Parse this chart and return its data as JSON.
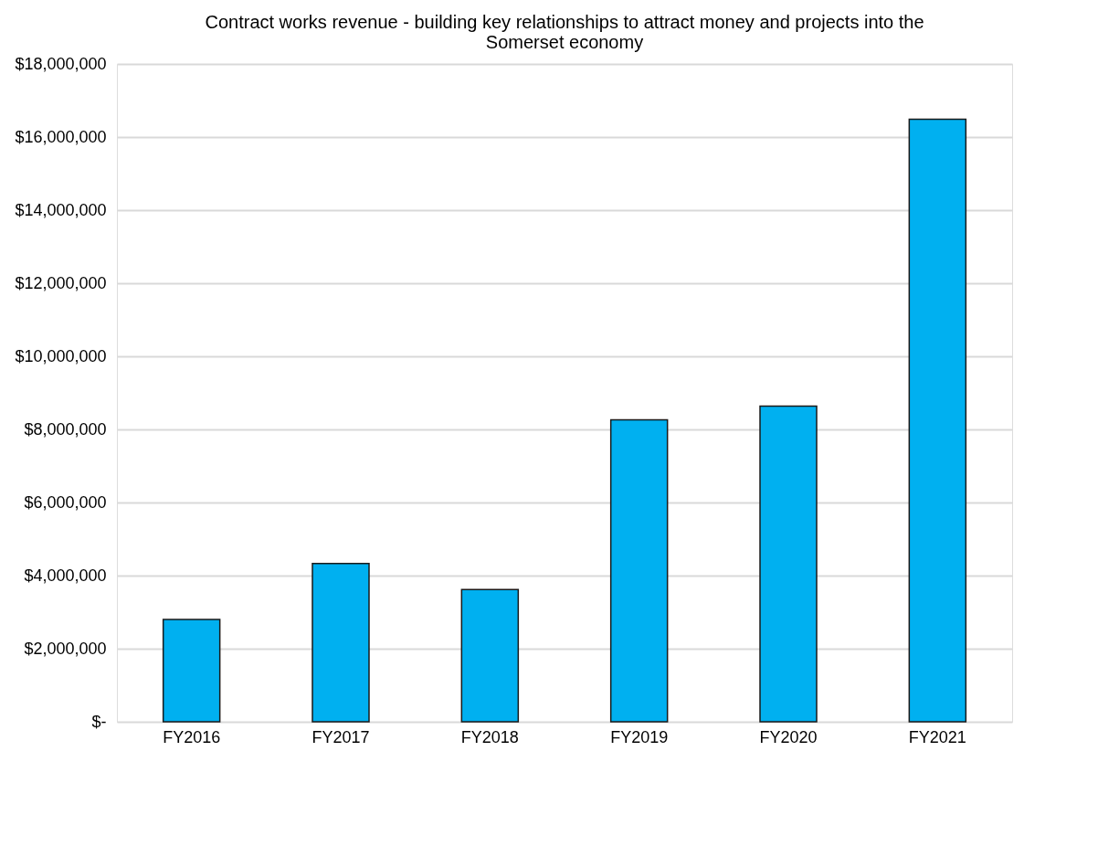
{
  "chart_data": {
    "type": "bar",
    "title": "Contract works revenue - building key relationships to attract money and projects into the Somerset economy",
    "categories": [
      "FY2016",
      "FY2017",
      "FY2018",
      "FY2019",
      "FY2020",
      "FY2021"
    ],
    "values": [
      2800000,
      4330000,
      3620000,
      8260000,
      8640000,
      16490000
    ],
    "color": "#00b0f0",
    "ylim": [
      0,
      18000000
    ],
    "yticks": [
      {
        "value": 0,
        "label": "$-"
      },
      {
        "value": 2000000,
        "label": "$2,000,000"
      },
      {
        "value": 4000000,
        "label": "$4,000,000"
      },
      {
        "value": 6000000,
        "label": "$6,000,000"
      },
      {
        "value": 8000000,
        "label": "$8,000,000"
      },
      {
        "value": 10000000,
        "label": "$10,000,000"
      },
      {
        "value": 12000000,
        "label": "$12,000,000"
      },
      {
        "value": 14000000,
        "label": "$14,000,000"
      },
      {
        "value": 16000000,
        "label": "$16,000,000"
      },
      {
        "value": 18000000,
        "label": "$18,000,000"
      }
    ],
    "grid": "y"
  }
}
